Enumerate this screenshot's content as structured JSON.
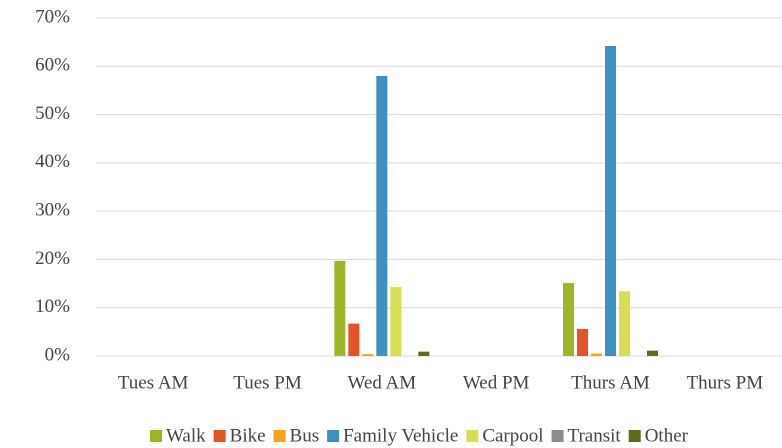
{
  "chart_data": {
    "type": "bar",
    "categories": [
      "Tues AM",
      "Tues PM",
      "Wed AM",
      "Wed PM",
      "Thurs AM",
      "Thurs PM"
    ],
    "series": [
      {
        "name": "Walk",
        "color": "#9cb52a",
        "values": [
          0,
          0,
          19.7,
          0,
          15.1,
          0
        ]
      },
      {
        "name": "Bike",
        "color": "#e2542a",
        "values": [
          0,
          0,
          6.7,
          0,
          5.6,
          0
        ]
      },
      {
        "name": "Bus",
        "color": "#f9a21b",
        "values": [
          0,
          0,
          0.4,
          0,
          0.5,
          0
        ]
      },
      {
        "name": "Family Vehicle",
        "color": "#3f8fbf",
        "values": [
          0,
          0,
          58,
          0,
          64.2,
          0
        ]
      },
      {
        "name": "Carpool",
        "color": "#d9dd55",
        "values": [
          0,
          0,
          14.3,
          0,
          13.4,
          0
        ]
      },
      {
        "name": "Transit",
        "color": "#8c8c8c",
        "values": [
          0,
          0,
          0,
          0,
          0,
          0
        ]
      },
      {
        "name": "Other",
        "color": "#5a6e1e",
        "values": [
          0,
          0,
          0.9,
          0,
          1.1,
          0
        ]
      }
    ],
    "ylim": [
      0,
      70
    ],
    "yticks": [
      {
        "value": 0,
        "label": "0%"
      },
      {
        "value": 10,
        "label": "10%"
      },
      {
        "value": 20,
        "label": "20%"
      },
      {
        "value": 30,
        "label": "30%"
      },
      {
        "value": 40,
        "label": "40%"
      },
      {
        "value": 50,
        "label": "50%"
      },
      {
        "value": 60,
        "label": "60%"
      },
      {
        "value": 70,
        "label": "70%"
      }
    ],
    "grid": true,
    "legend": "bottom"
  }
}
